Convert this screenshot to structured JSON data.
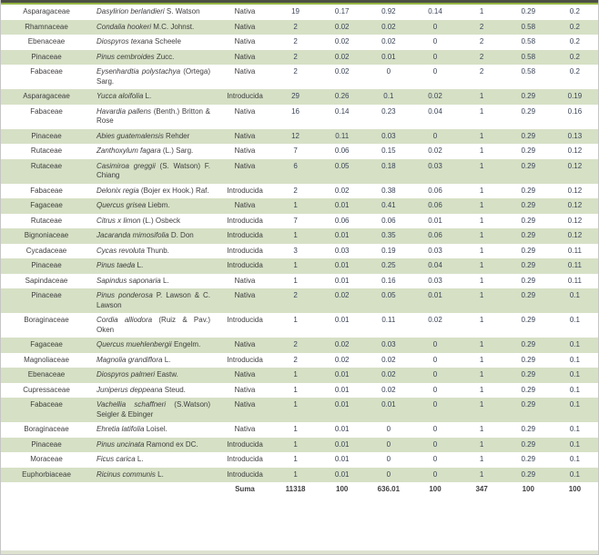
{
  "colors": {
    "stripe": "#d6e0c5",
    "topbar_dark": "#4c4f45",
    "topbar_green": "#94b442",
    "side_border": "#c6c6c6",
    "bottom_strip": "#dde3d0",
    "text": "#3e3e3e",
    "number_text": "#3b4558"
  },
  "table": {
    "rows": [
      {
        "family": "Asparagaceae",
        "sci": "Dasylirion berlandieri",
        "auth": "S. Watson",
        "origin": "Nativa",
        "values": [
          "19",
          "0.17",
          "0.92",
          "0.14",
          "1",
          "0.29",
          "0.2"
        ]
      },
      {
        "family": "Rhamnaceae",
        "sci": "Condalia hookeri",
        "auth": "M.C. Johnst.",
        "origin": "Nativa",
        "values": [
          "2",
          "0.02",
          "0.02",
          "0",
          "2",
          "0.58",
          "0.2"
        ]
      },
      {
        "family": "Ebenaceae",
        "sci": "Diospyros texana",
        "auth": "Scheele",
        "origin": "Nativa",
        "values": [
          "2",
          "0.02",
          "0.02",
          "0",
          "2",
          "0.58",
          "0.2"
        ]
      },
      {
        "family": "Pinaceae",
        "sci": "Pinus cembroides",
        "auth": "Zucc.",
        "origin": "Nativa",
        "values": [
          "2",
          "0.02",
          "0.01",
          "0",
          "2",
          "0.58",
          "0.2"
        ]
      },
      {
        "family": "Fabaceae",
        "sci": "Eysenhardtia polystachya",
        "auth": "(Ortega) Sarg.",
        "origin": "Nativa",
        "values": [
          "2",
          "0.02",
          "0",
          "0",
          "2",
          "0.58",
          "0.2"
        ]
      },
      {
        "family": "Asparagaceae",
        "sci": "Yucca aloifolia",
        "auth": "L.",
        "origin": "Introducida",
        "values": [
          "29",
          "0.26",
          "0.1",
          "0.02",
          "1",
          "0.29",
          "0.19"
        ]
      },
      {
        "family": "Fabaceae",
        "sci": "Havardia pallens",
        "auth": "(Benth.) Britton & Rose",
        "origin": "Nativa",
        "values": [
          "16",
          "0.14",
          "0.23",
          "0.04",
          "1",
          "0.29",
          "0.16"
        ]
      },
      {
        "family": "Pinaceae",
        "sci": "Abies guatemalensis",
        "auth": "Rehder",
        "origin": "Nativa",
        "values": [
          "12",
          "0.11",
          "0.03",
          "0",
          "1",
          "0.29",
          "0.13"
        ]
      },
      {
        "family": "Rutaceae",
        "sci": "Zanthoxylum fagara",
        "auth": "(L.) Sarg.",
        "origin": "Nativa",
        "values": [
          "7",
          "0.06",
          "0.15",
          "0.02",
          "1",
          "0.29",
          "0.12"
        ]
      },
      {
        "family": "Rutaceae",
        "sci": "Casimiroa greggii",
        "auth": "(S. Watson) F. Chiang",
        "origin": "Nativa",
        "values": [
          "6",
          "0.05",
          "0.18",
          "0.03",
          "1",
          "0.29",
          "0.12"
        ]
      },
      {
        "family": "Fabaceae",
        "sci": "Delonix regia",
        "auth": "(Bojer ex Hook.) Raf.",
        "origin": "Introducida",
        "values": [
          "2",
          "0.02",
          "0.38",
          "0.06",
          "1",
          "0.29",
          "0.12"
        ]
      },
      {
        "family": "Fagaceae",
        "sci": "Quercus grisea",
        "auth": "Liebm.",
        "origin": "Nativa",
        "values": [
          "1",
          "0.01",
          "0.41",
          "0.06",
          "1",
          "0.29",
          "0.12"
        ]
      },
      {
        "family": "Rutaceae",
        "sci": "Citrus x limon",
        "auth": "(L.) Osbeck",
        "origin": "Introducida",
        "values": [
          "7",
          "0.06",
          "0.06",
          "0.01",
          "1",
          "0.29",
          "0.12"
        ]
      },
      {
        "family": "Bignoniaceae",
        "sci": "Jacaranda mimosifolia",
        "auth": "D. Don",
        "origin": "Introducida",
        "values": [
          "1",
          "0.01",
          "0.35",
          "0.06",
          "1",
          "0.29",
          "0.12"
        ]
      },
      {
        "family": "Cycadaceae",
        "sci": "Cycas revoluta",
        "auth": "Thunb.",
        "origin": "Introducida",
        "values": [
          "3",
          "0.03",
          "0.19",
          "0.03",
          "1",
          "0.29",
          "0.11"
        ]
      },
      {
        "family": "Pinaceae",
        "sci": "Pinus taeda",
        "auth": "L.",
        "origin": "Introducida",
        "values": [
          "1",
          "0.01",
          "0.25",
          "0.04",
          "1",
          "0.29",
          "0.11"
        ]
      },
      {
        "family": "Sapindaceae",
        "sci": "Sapindus saponaria",
        "auth": "L.",
        "origin": "Nativa",
        "values": [
          "1",
          "0.01",
          "0.16",
          "0.03",
          "1",
          "0.29",
          "0.11"
        ]
      },
      {
        "family": "Pinaceae",
        "sci": "Pinus ponderosa",
        "auth": "P. Lawson & C. Lawson",
        "origin": "Nativa",
        "values": [
          "2",
          "0.02",
          "0.05",
          "0.01",
          "1",
          "0.29",
          "0.1"
        ]
      },
      {
        "family": "Boraginaceae",
        "sci": "Cordia alliodora",
        "auth": "(Ruiz & Pav.) Oken",
        "origin": "Introducida",
        "values": [
          "1",
          "0.01",
          "0.11",
          "0.02",
          "1",
          "0.29",
          "0.1"
        ]
      },
      {
        "family": "Fagaceae",
        "sci": "Quercus muehlenbergii",
        "auth": "Engelm.",
        "origin": "Nativa",
        "values": [
          "2",
          "0.02",
          "0.03",
          "0",
          "1",
          "0.29",
          "0.1"
        ]
      },
      {
        "family": "Magnoliaceae",
        "sci": "Magnolia grandiflora",
        "auth": "L.",
        "origin": "Introducida",
        "values": [
          "2",
          "0.02",
          "0.02",
          "0",
          "1",
          "0.29",
          "0.1"
        ]
      },
      {
        "family": "Ebenaceae",
        "sci": "Diospyros palmeri",
        "auth": "Eastw.",
        "origin": "Nativa",
        "values": [
          "1",
          "0.01",
          "0.02",
          "0",
          "1",
          "0.29",
          "0.1"
        ]
      },
      {
        "family": "Cupressaceae",
        "sci": "Juniperus deppeana",
        "auth": "Steud.",
        "origin": "Nativa",
        "values": [
          "1",
          "0.01",
          "0.02",
          "0",
          "1",
          "0.29",
          "0.1"
        ]
      },
      {
        "family": "Fabaceae",
        "sci": "Vachellia schaffneri",
        "auth": "(S.Watson) Seigler & Ebinger",
        "origin": "Nativa",
        "values": [
          "1",
          "0.01",
          "0.01",
          "0",
          "1",
          "0.29",
          "0.1"
        ]
      },
      {
        "family": "Boraginaceae",
        "sci": "Ehretia latifolia",
        "auth": "Loisel.",
        "origin": "Nativa",
        "values": [
          "1",
          "0.01",
          "0",
          "0",
          "1",
          "0.29",
          "0.1"
        ]
      },
      {
        "family": "Pinaceae",
        "sci": "Pinus uncinata",
        "auth": "Ramond ex DC.",
        "origin": "Introducida",
        "values": [
          "1",
          "0.01",
          "0",
          "0",
          "1",
          "0.29",
          "0.1"
        ]
      },
      {
        "family": "Moraceae",
        "sci": "Ficus carica",
        "auth": "L.",
        "origin": "Introducida",
        "values": [
          "1",
          "0.01",
          "0",
          "0",
          "1",
          "0.29",
          "0.1"
        ]
      },
      {
        "family": "Euphorbiaceae",
        "sci": "Ricinus communis",
        "auth": "L.",
        "origin": "Introducida",
        "values": [
          "1",
          "0.01",
          "0",
          "0",
          "1",
          "0.29",
          "0.1"
        ]
      }
    ],
    "footer": {
      "label": "Suma",
      "values": [
        "11318",
        "100",
        "636.01",
        "100",
        "347",
        "100",
        "100"
      ]
    }
  }
}
